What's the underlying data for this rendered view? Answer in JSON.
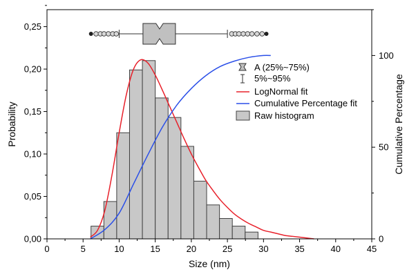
{
  "chart_data": {
    "type": "bar",
    "xlabel": "Size (nm)",
    "ylabel": "Probability",
    "y2label": "Cumulative Percentage",
    "xlim": [
      0,
      45
    ],
    "ylim": [
      0,
      0.27
    ],
    "y2lim": [
      0,
      125
    ],
    "xticks": [
      "0",
      "5",
      "10",
      "15",
      "20",
      "25",
      "30",
      "35",
      "40",
      "45"
    ],
    "yticks": [
      "0,00",
      "0,05",
      "0,10",
      "0,15",
      "0,20",
      "0,25"
    ],
    "y2ticks": [
      "0",
      "50",
      "100"
    ],
    "legend": {
      "position": "right",
      "entries": [
        "A (25%~75%)",
        "5%~95%",
        "LogNormal fit",
        "Cumulative Percentage fit",
        "Raw histogram"
      ]
    },
    "histogram": {
      "name": "Raw histogram",
      "bin_width": 1.78,
      "bin_starts": [
        6.1,
        7.88,
        9.66,
        11.44,
        13.22,
        15.0,
        16.78,
        18.56,
        20.34,
        22.12,
        23.9,
        25.68,
        27.46,
        29.24
      ],
      "values": [
        0.015,
        0.044,
        0.125,
        0.199,
        0.21,
        0.166,
        0.143,
        0.109,
        0.068,
        0.04,
        0.024,
        0.015,
        0.008,
        0.0
      ]
    },
    "lognormal_fit": {
      "name": "LogNormal fit",
      "color": "#e8202a",
      "x": [
        6,
        7,
        8,
        9,
        10,
        11,
        12,
        13,
        14,
        15,
        16,
        17,
        18,
        19,
        20,
        21,
        22,
        23,
        24,
        25,
        26,
        27,
        28,
        29,
        30,
        31,
        32,
        33,
        34,
        35,
        36,
        37
      ],
      "y": [
        0.002,
        0.01,
        0.033,
        0.075,
        0.125,
        0.17,
        0.2,
        0.211,
        0.207,
        0.193,
        0.175,
        0.156,
        0.137,
        0.118,
        0.1,
        0.084,
        0.069,
        0.057,
        0.046,
        0.037,
        0.029,
        0.023,
        0.018,
        0.014,
        0.01,
        0.008,
        0.006,
        0.004,
        0.003,
        0.002,
        0.001,
        0.0
      ]
    },
    "cumulative_fit": {
      "name": "Cumulative Percentage fit",
      "color": "#2a4fe8",
      "x": [
        6,
        8,
        10,
        12,
        14,
        16,
        18,
        20,
        22,
        24,
        26,
        28,
        30,
        31
      ],
      "y": [
        0,
        5,
        14,
        30,
        46,
        61,
        73,
        82,
        89,
        94,
        97,
        99,
        100,
        100
      ]
    },
    "boxplot": {
      "q1": 13.3,
      "median": 15.6,
      "q3": 17.8,
      "notch_low": 15.1,
      "notch_high": 16.1,
      "p5": 10.0,
      "p95": 25.0,
      "min": 6.1,
      "max": 30.4,
      "outliers": [
        6.8,
        7.4,
        7.9,
        8.5,
        9.1,
        9.6,
        25.6,
        26.1,
        26.6,
        27.2,
        27.8,
        28.4,
        29.1,
        29.8
      ]
    },
    "colors": {
      "bar_fill": "#c8c8c8",
      "bar_stroke": "#404040",
      "box_fill": "#c0c0c0"
    }
  }
}
